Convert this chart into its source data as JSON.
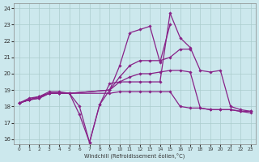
{
  "xlabel": "Windchill (Refroidissement éolien,°C)",
  "background_color": "#cce8ed",
  "grid_color": "#aacccc",
  "line_color": "#882288",
  "xlim": [
    -0.5,
    23.5
  ],
  "ylim": [
    15.7,
    24.3
  ],
  "xticks": [
    0,
    1,
    2,
    3,
    4,
    5,
    6,
    7,
    8,
    9,
    10,
    11,
    12,
    13,
    14,
    15,
    16,
    17,
    18,
    19,
    20,
    21,
    22,
    23
  ],
  "yticks": [
    16,
    17,
    18,
    19,
    20,
    21,
    22,
    23,
    24
  ],
  "lines": [
    {
      "x": [
        0,
        1,
        2,
        3,
        4,
        5,
        6,
        7,
        8,
        9,
        10,
        11,
        12,
        13,
        14,
        15,
        16,
        17,
        18,
        19,
        20,
        21,
        22,
        23
      ],
      "y": [
        18.2,
        18.5,
        18.6,
        18.8,
        18.8,
        18.8,
        18.0,
        15.8,
        18.1,
        19.4,
        19.5,
        19.5,
        19.5,
        19.5,
        19.5,
        23.7,
        22.2,
        21.6,
        20.2,
        20.1,
        20.2,
        18.0,
        17.8,
        17.7
      ]
    },
    {
      "x": [
        0,
        1,
        2,
        3,
        4,
        5,
        6,
        7,
        8,
        9,
        10,
        11,
        12,
        13,
        14,
        15
      ],
      "y": [
        18.2,
        18.4,
        18.6,
        18.8,
        18.8,
        18.8,
        17.5,
        15.8,
        18.1,
        19.0,
        20.5,
        22.5,
        22.7,
        22.9,
        20.7,
        23.0
      ]
    },
    {
      "x": [
        0,
        1,
        2,
        3,
        4,
        5,
        9,
        10,
        11,
        12,
        13,
        14,
        15,
        16,
        17
      ],
      "y": [
        18.2,
        18.4,
        18.6,
        18.9,
        18.9,
        18.8,
        19.0,
        19.8,
        20.5,
        20.8,
        20.8,
        20.8,
        21.0,
        21.5,
        21.5
      ]
    },
    {
      "x": [
        0,
        1,
        2,
        3,
        4,
        5,
        9,
        10,
        11,
        12,
        13,
        14,
        15,
        16,
        17,
        18,
        19,
        20,
        21,
        22,
        23
      ],
      "y": [
        18.2,
        18.4,
        18.5,
        18.8,
        18.8,
        18.8,
        19.0,
        19.5,
        19.8,
        20.0,
        20.0,
        20.1,
        20.2,
        20.2,
        20.1,
        17.9,
        17.8,
        17.8,
        17.8,
        17.7,
        17.6
      ]
    },
    {
      "x": [
        0,
        1,
        2,
        3,
        4,
        5,
        9,
        10,
        11,
        12,
        13,
        14,
        15,
        16,
        17,
        18,
        19,
        20,
        21,
        22,
        23
      ],
      "y": [
        18.2,
        18.4,
        18.5,
        18.8,
        18.8,
        18.8,
        18.8,
        18.9,
        18.9,
        18.9,
        18.9,
        18.9,
        18.9,
        18.0,
        17.9,
        17.9,
        17.8,
        17.8,
        17.8,
        17.7,
        17.7
      ]
    }
  ]
}
